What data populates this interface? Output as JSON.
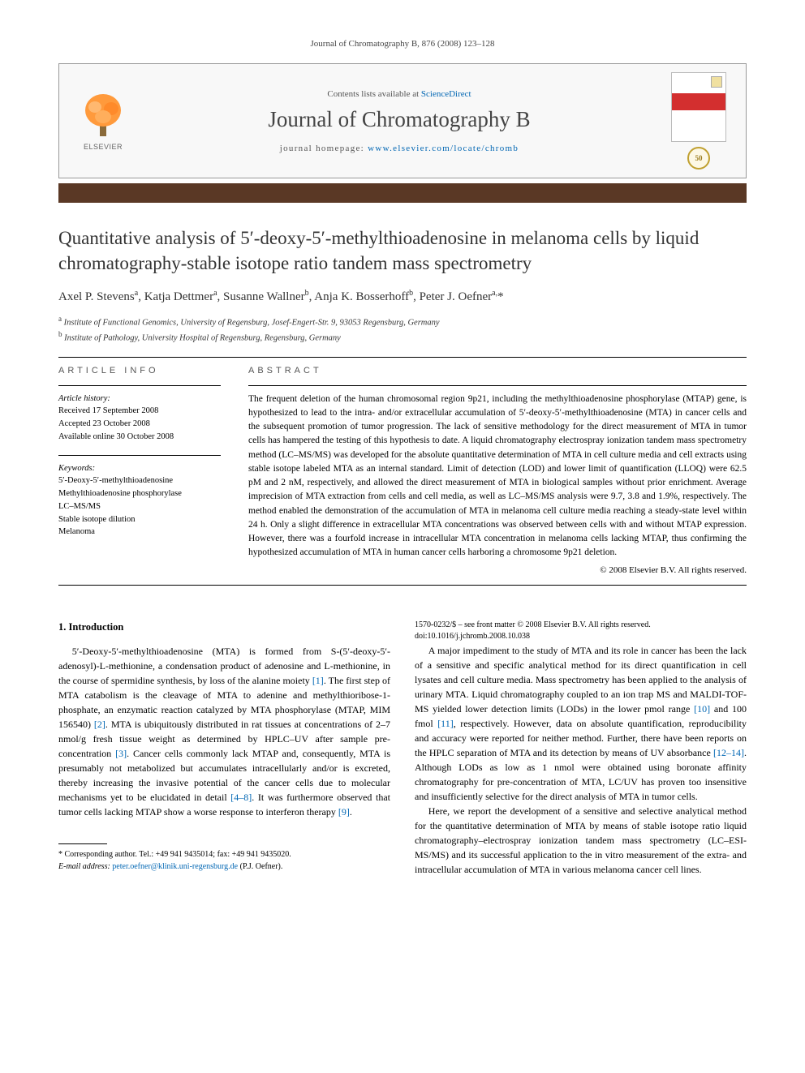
{
  "running_head": "Journal of Chromatography B, 876 (2008) 123–128",
  "masthead": {
    "contents_prefix": "Contents lists available at ",
    "contents_link": "ScienceDirect",
    "journal_name": "Journal of Chromatography B",
    "homepage_prefix": "journal homepage: ",
    "homepage_url": "www.elsevier.com/locate/chromb",
    "publisher": "ELSEVIER",
    "seal_text": "50",
    "colors": {
      "border": "#999999",
      "bg": "#f8f8f8",
      "link": "#0066b3",
      "bar": "#5a3825",
      "elsevier_orange": "#ff6b00"
    }
  },
  "title": "Quantitative analysis of 5′-deoxy-5′-methylthioadenosine in melanoma cells by liquid chromatography-stable isotope ratio tandem mass spectrometry",
  "authors_html": "Axel P. Stevens<sup>a</sup>, Katja Dettmer<sup>a</sup>, Susanne Wallner<sup>b</sup>, Anja K. Bosserhoff<sup>b</sup>, Peter J. Oefner<sup>a,</sup>*",
  "affiliations": [
    {
      "sup": "a",
      "text": "Institute of Functional Genomics, University of Regensburg, Josef-Engert-Str. 9, 93053 Regensburg, Germany"
    },
    {
      "sup": "b",
      "text": "Institute of Pathology, University Hospital of Regensburg, Regensburg, Germany"
    }
  ],
  "article_info": {
    "heading": "article info",
    "history_label": "Article history:",
    "history": [
      "Received 17 September 2008",
      "Accepted 23 October 2008",
      "Available online 30 October 2008"
    ],
    "keywords_label": "Keywords:",
    "keywords": [
      "5′-Deoxy-5′-methylthioadenosine",
      "Methylthioadenosine phosphorylase",
      "LC–MS/MS",
      "Stable isotope dilution",
      "Melanoma"
    ]
  },
  "abstract": {
    "heading": "abstract",
    "text": "The frequent deletion of the human chromosomal region 9p21, including the methylthioadenosine phosphorylase (MTAP) gene, is hypothesized to lead to the intra- and/or extracellular accumulation of 5′-deoxy-5′-methylthioadenosine (MTA) in cancer cells and the subsequent promotion of tumor progression. The lack of sensitive methodology for the direct measurement of MTA in tumor cells has hampered the testing of this hypothesis to date. A liquid chromatography electrospray ionization tandem mass spectrometry method (LC–MS/MS) was developed for the absolute quantitative determination of MTA in cell culture media and cell extracts using stable isotope labeled MTA as an internal standard. Limit of detection (LOD) and lower limit of quantification (LLOQ) were 62.5 pM and 2 nM, respectively, and allowed the direct measurement of MTA in biological samples without prior enrichment. Average imprecision of MTA extraction from cells and cell media, as well as LC–MS/MS analysis were 9.7, 3.8 and 1.9%, respectively. The method enabled the demonstration of the accumulation of MTA in melanoma cell culture media reaching a steady-state level within 24 h. Only a slight difference in extracellular MTA concentrations was observed between cells with and without MTAP expression. However, there was a fourfold increase in intracellular MTA concentration in melanoma cells lacking MTAP, thus confirming the hypothesized accumulation of MTA in human cancer cells harboring a chromosome 9p21 deletion.",
    "copyright": "© 2008 Elsevier B.V. All rights reserved."
  },
  "body": {
    "section_heading": "1. Introduction",
    "p1": "5′-Deoxy-5′-methylthioadenosine (MTA) is formed from S-(5′-deoxy-5′-adenosyl)-L-methionine, a condensation product of adenosine and L-methionine, in the course of spermidine synthesis, by loss of the alanine moiety [1]. The first step of MTA catabolism is the cleavage of MTA to adenine and methylthioribose-1-phosphate, an enzymatic reaction catalyzed by MTA phosphorylase (MTAP, MIM 156540) [2]. MTA is ubiquitously distributed in rat tissues at concentrations of 2–7 nmol/g fresh tissue weight as determined by HPLC–UV after sample pre-concentration [3]. Cancer cells commonly lack MTAP and, consequently, MTA is presumably not metabolized but accumulates intracellularly and/or is excreted, thereby increasing the invasive potential of the cancer cells due to molecular mechanisms yet to be elucidated in detail [4–8]. It was furthermore observed that tumor cells lacking MTAP show a worse response to interferon therapy [9].",
    "p2": "A major impediment to the study of MTA and its role in cancer has been the lack of a sensitive and specific analytical method for its direct quantification in cell lysates and cell culture media. Mass spectrometry has been applied to the analysis of urinary MTA. Liquid chromatography coupled to an ion trap MS and MALDI-TOF-MS yielded lower detection limits (LODs) in the lower pmol range [10] and 100 fmol [11], respectively. However, data on absolute quantification, reproducibility and accuracy were reported for neither method. Further, there have been reports on the HPLC separation of MTA and its detection by means of UV absorbance [12–14]. Although LODs as low as 1 nmol were obtained using boronate affinity chromatography for pre-concentration of MTA, LC/UV has proven too insensitive and insufficiently selective for the direct analysis of MTA in tumor cells.",
    "p3": "Here, we report the development of a sensitive and selective analytical method for the quantitative determination of MTA by means of stable isotope ratio liquid chromatography–electrospray ionization tandem mass spectrometry (LC–ESI-MS/MS) and its successful application to the in vitro measurement of the extra- and intracellular accumulation of MTA in various melanoma cancer cell lines."
  },
  "footnotes": {
    "corr": "* Corresponding author. Tel.: +49 941 9435014; fax: +49 941 9435020.",
    "email_label": "E-mail address: ",
    "email": "peter.oefner@klinik.uni-regensburg.de",
    "email_suffix": " (P.J. Oefner)."
  },
  "doi": {
    "line1": "1570-0232/$ – see front matter © 2008 Elsevier B.V. All rights reserved.",
    "line2": "doi:10.1016/j.jchromb.2008.10.038"
  },
  "refs": {
    "r1": "[1]",
    "r2": "[2]",
    "r3": "[3]",
    "r48": "[4–8]",
    "r9": "[9]",
    "r10": "[10]",
    "r11": "[11]",
    "r1214": "[12–14]"
  }
}
